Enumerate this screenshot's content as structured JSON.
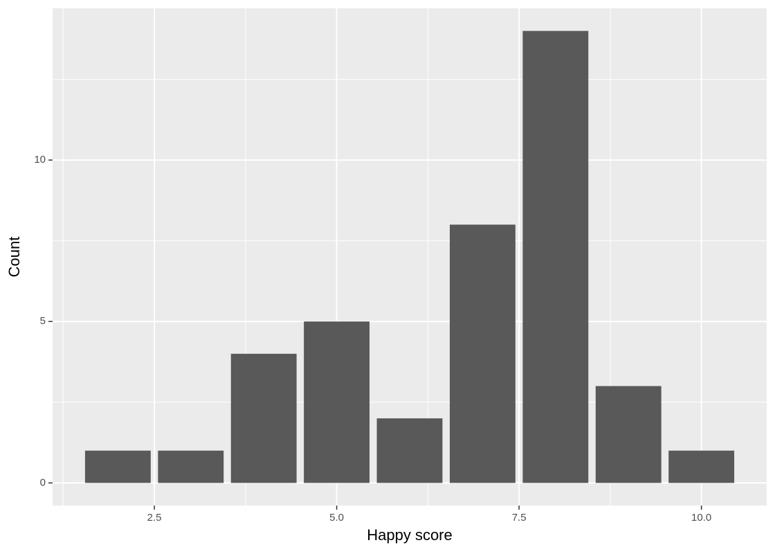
{
  "chart_data": {
    "type": "bar",
    "x_label": "Happy score",
    "y_label": "Count",
    "x": [
      2,
      3,
      4,
      5,
      6,
      7,
      8,
      9,
      10
    ],
    "values": [
      1,
      1,
      4,
      5,
      2,
      8,
      14,
      3,
      1
    ],
    "color": "#595959",
    "xlim": [
      1.105,
      10.895
    ],
    "ylim": [
      -0.7,
      14.7
    ],
    "xticks": [
      2.5,
      {
        "value": 5,
        "label": "5.0"
      },
      7.5,
      {
        "value": 10,
        "label": "10.0"
      }
    ],
    "yticks": [
      0,
      5,
      10
    ],
    "minor_xticks": [
      1.25,
      3.75,
      6.25,
      8.75
    ],
    "minor_yticks": [
      2.5,
      7.5,
      12.5
    ],
    "grid": true
  }
}
